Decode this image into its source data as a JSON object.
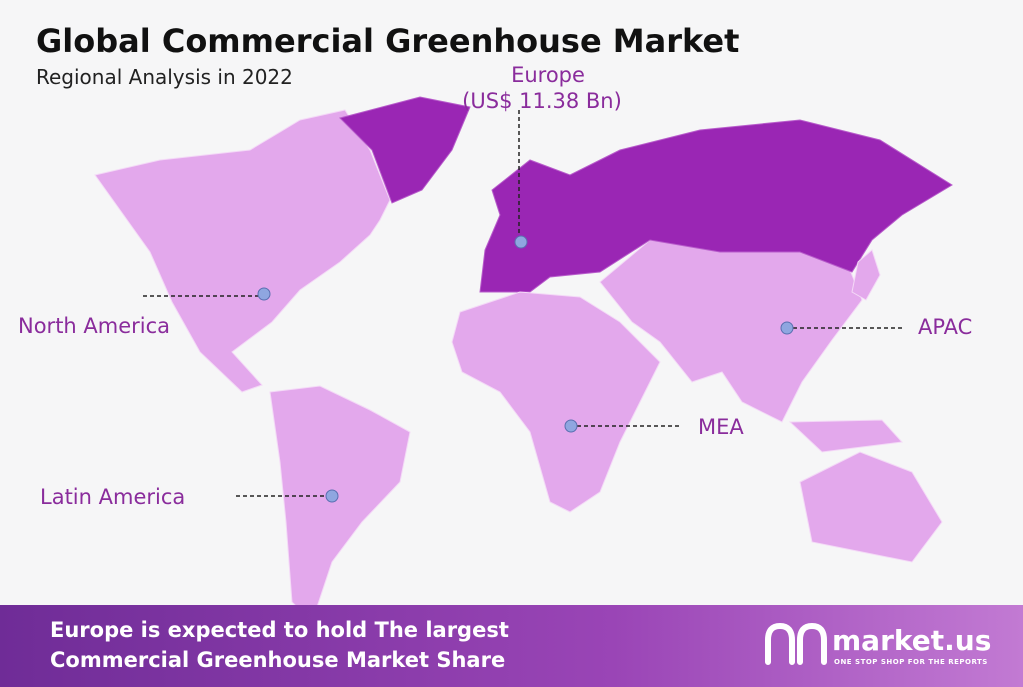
{
  "header": {
    "title": "Global Commercial Greenhouse Market",
    "subtitle": "Regional Analysis in 2022"
  },
  "regions": [
    {
      "name": "Europe",
      "value_label": "(US$ 11.38 Bn)"
    },
    {
      "name": "North America"
    },
    {
      "name": "APAC"
    },
    {
      "name": "MEA"
    },
    {
      "name": "Latin America"
    }
  ],
  "footer": {
    "lines": [
      "Europe is expected to hold The largest",
      "Commercial Greenhouse Market Share"
    ],
    "logo": {
      "name": "market.us",
      "tagline": "ONE STOP SHOP FOR THE REPORTS"
    }
  }
}
